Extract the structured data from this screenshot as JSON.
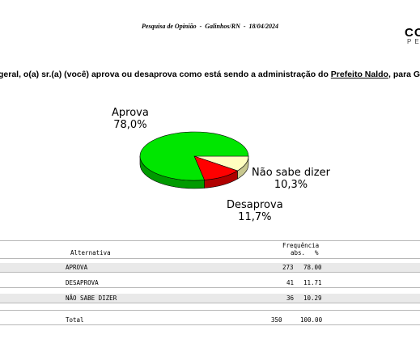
{
  "header": {
    "title": "Pesquisa de Opinião  -  Galinhos/RN  -  18/04/2024",
    "logo": "CO",
    "logo_sub": "PE"
  },
  "question": {
    "prefix": "geral, o(a) sr.(a) (você) aprova ou desaprova como está sendo a administração do ",
    "underlined": "Prefeito Naldo",
    "suffix": ", para Galin"
  },
  "chart_data": {
    "type": "pie",
    "title": "",
    "slices": [
      {
        "label": "Aprova",
        "value": 78.0,
        "display": "78,0%",
        "color": "#00e600",
        "side_color": "#009a00"
      },
      {
        "label": "Desaprova",
        "value": 11.7,
        "display": "11,7%",
        "color": "#ff0000",
        "side_color": "#b00000"
      },
      {
        "label": "Não sabe dizer",
        "value": 10.3,
        "display": "10,3%",
        "color": "#ffffc0",
        "side_color": "#c8c890"
      }
    ]
  },
  "table": {
    "header_top": "Frequência",
    "col_alternativa": "Alternativa",
    "col_abs": "abs.",
    "col_pct": "%",
    "rows": [
      {
        "label": "APROVA",
        "abs": "273",
        "pct": "78.00"
      },
      {
        "label": "DESAPROVA",
        "abs": "41",
        "pct": "11.71"
      },
      {
        "label": "NÃO SABE DIZER",
        "abs": "36",
        "pct": "10.29"
      }
    ],
    "total": {
      "label": "Total",
      "abs": "350",
      "pct": "100.00"
    }
  }
}
